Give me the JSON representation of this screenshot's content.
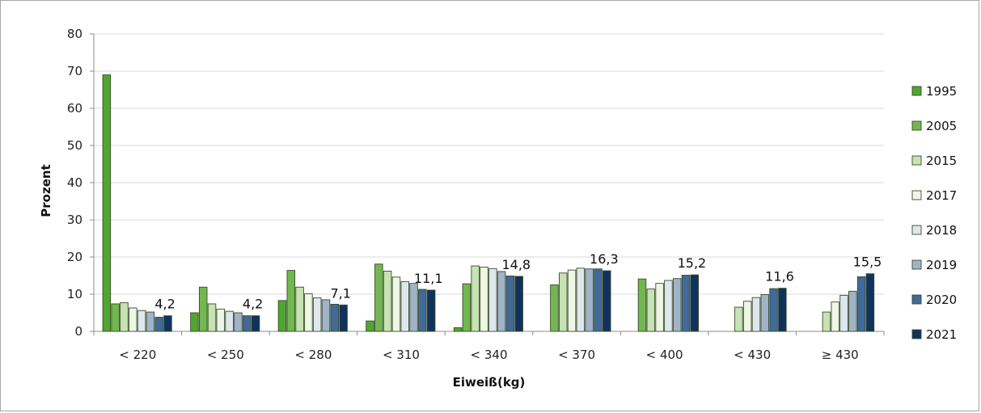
{
  "chart_data": {
    "type": "bar",
    "xlabel": "Eiweiß(kg)",
    "ylabel": "Prozent",
    "ylim": [
      0,
      80
    ],
    "yticks": [
      0,
      10,
      20,
      30,
      40,
      50,
      60,
      70,
      80
    ],
    "grid": true,
    "legend_position": "right",
    "categories": [
      "< 220",
      "< 250",
      "< 280",
      "< 310",
      "< 340",
      "< 370",
      "< 400",
      "< 430",
      "≥ 430"
    ],
    "series": [
      {
        "name": "1995",
        "color": "#4ea72e",
        "values": [
          69,
          5,
          8.3,
          2.8,
          1,
          null,
          null,
          null,
          null
        ]
      },
      {
        "name": "2005",
        "color": "#70b84f",
        "values": [
          7.4,
          11.9,
          16.4,
          18.1,
          12.8,
          12.5,
          14.1,
          null,
          null
        ]
      },
      {
        "name": "2015",
        "color": "#c6e3b3",
        "values": [
          7.7,
          7.4,
          11.9,
          16.2,
          17.6,
          15.7,
          11.4,
          6.5,
          5.2
        ]
      },
      {
        "name": "2017",
        "color": "#eef6e5",
        "values": [
          6.3,
          6,
          10.1,
          14.6,
          17.3,
          16.5,
          12.9,
          8.1,
          7.9
        ]
      },
      {
        "name": "2018",
        "color": "#dfe7ee",
        "values": [
          5.6,
          5.4,
          9,
          13.4,
          16.9,
          17,
          13.7,
          9.1,
          9.7
        ]
      },
      {
        "name": "2019",
        "color": "#9fb4c8",
        "values": [
          5.2,
          5,
          8.5,
          12.9,
          16.1,
          16.8,
          14.2,
          9.9,
          10.8
        ]
      },
      {
        "name": "2020",
        "color": "#3f6a9a",
        "values": [
          3.8,
          4.2,
          7.3,
          11.3,
          14.9,
          16.8,
          15.1,
          11.5,
          14.7
        ]
      },
      {
        "name": "2021",
        "color": "#10325f",
        "values": [
          4.2,
          4.2,
          7.1,
          11.1,
          14.8,
          16.3,
          15.2,
          11.6,
          15.5
        ]
      }
    ],
    "data_labels": [
      "4,2",
      "4,2",
      "7,1",
      "11,1",
      "14,8",
      "16,3",
      "15,2",
      "11,6",
      "15,5"
    ]
  }
}
